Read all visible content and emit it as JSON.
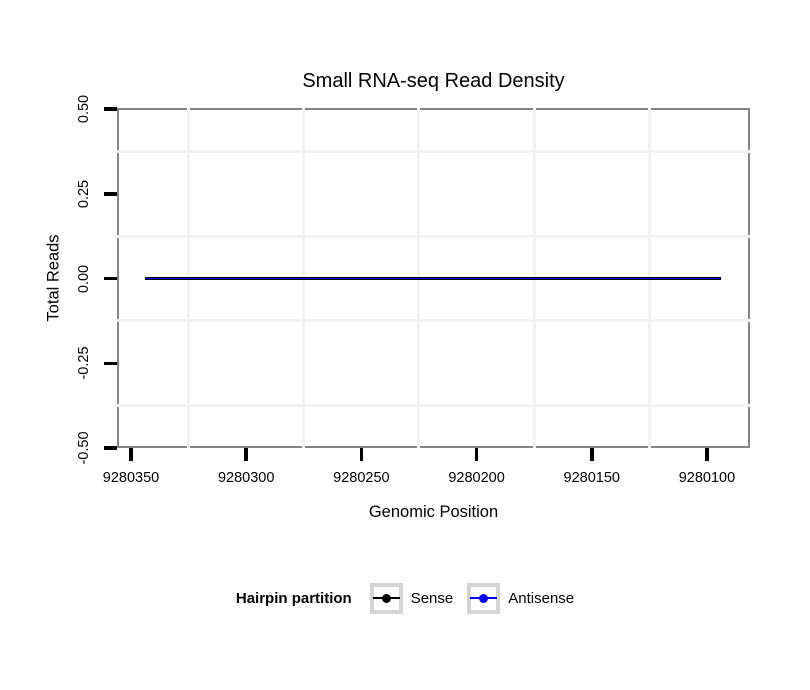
{
  "title": "Small RNA-seq Read Density",
  "x_axis": {
    "label": "Genomic Position",
    "tick_labels": [
      "9280350",
      "9280300",
      "9280250",
      "9280200",
      "9280150",
      "9280100"
    ],
    "tick_values": [
      9280350,
      9280300,
      9280250,
      9280200,
      9280150,
      9280100
    ]
  },
  "y_axis": {
    "label": "Total Reads",
    "tick_labels": [
      "0.50",
      "0.25",
      "0.00",
      "-0.25",
      "-0.50"
    ],
    "tick_values": [
      0.5,
      0.25,
      0,
      -0.25,
      -0.5
    ]
  },
  "legend": {
    "title": "Hairpin partition",
    "items": [
      {
        "label": "Sense",
        "color": "#000000"
      },
      {
        "label": "Antisense",
        "color": "#0000ee"
      }
    ]
  },
  "colors": {
    "panel_border": "#848484",
    "tick": "#000000",
    "grid_minor": "#f2f2f2",
    "sense": "#000000",
    "antisense": "#0000ee"
  },
  "chart_data": {
    "type": "line",
    "title": "Small RNA-seq Read Density",
    "xlabel": "Genomic Position",
    "ylabel": "Total Reads",
    "x_ticks": [
      9280350,
      9280300,
      9280250,
      9280200,
      9280150,
      9280100
    ],
    "x_axis_reversed": true,
    "xlim": [
      9280356,
      9280081
    ],
    "y_ticks": [
      0.5,
      0.25,
      0,
      -0.25,
      -0.5
    ],
    "ylim": [
      -0.5,
      0.5
    ],
    "grid": "faint minor gridlines only, white panel background, gray panel border",
    "legend_position": "bottom",
    "legend_title": "Hairpin partition",
    "series": [
      {
        "name": "Sense",
        "color": "#000000",
        "y_value": 0,
        "x_start": 9280344,
        "x_end": 9280094,
        "shape": "constant flat line at y=0 across the full genomic range"
      },
      {
        "name": "Antisense",
        "color": "#0000ee",
        "y_value": 0,
        "x_start": 9280344,
        "x_end": 9280094,
        "shape": "constant flat line at y=0 across the full genomic range (overlaps Sense line)"
      }
    ]
  }
}
